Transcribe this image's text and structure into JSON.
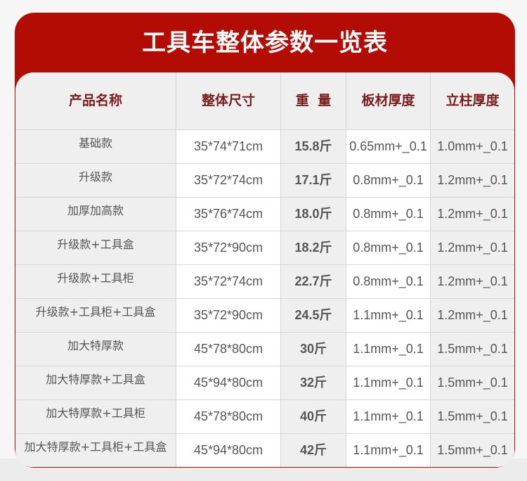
{
  "title": "工具车整体参数一览表",
  "colors": {
    "accent": "#b30c05",
    "header_text": "#7a1c1c"
  },
  "table": {
    "headers": [
      "产品名称",
      "整体尺寸",
      "重 量",
      "板材厚度",
      "立柱厚度"
    ],
    "rows": [
      [
        "基础款",
        "35*74*71cm",
        "15.8斤",
        "0.65mm+_0.1",
        "1.0mm+_0.1"
      ],
      [
        "升级款",
        "35*72*74cm",
        "17.1斤",
        "0.8mm+_0.1",
        "1.2mm+_0.1"
      ],
      [
        "加厚加高款",
        "35*76*74cm",
        "18.0斤",
        "0.8mm+_0.1",
        "1.2mm+_0.1"
      ],
      [
        "升级款+工具盒",
        "35*72*90cm",
        "18.2斤",
        "0.8mm+_0.1",
        "1.2mm+_0.1"
      ],
      [
        "升级款+工具柜",
        "35*72*74cm",
        "22.7斤",
        "0.8mm+_0.1",
        "1.2mm+_0.1"
      ],
      [
        "升级款+工具柜+工具盒",
        "35*72*90cm",
        "24.5斤",
        "1.1mm+_0.1",
        "1.2mm+_0.1"
      ],
      [
        "加大特厚款",
        "45*78*80cm",
        "30斤",
        "1.1mm+_0.1",
        "1.5mm+_0.1"
      ],
      [
        "加大特厚款+工具盒",
        "45*94*80cm",
        "32斤",
        "1.1mm+_0.1",
        "1.5mm+_0.1"
      ],
      [
        "加大特厚款+工具柜",
        "45*78*80cm",
        "40斤",
        "1.1mm+_0.1",
        "1.5mm+_0.1"
      ],
      [
        "加大特厚款+工具柜+工具盒",
        "45*94*80cm",
        "42斤",
        "1.1mm+_0.1",
        "1.5mm+_0.1"
      ]
    ]
  }
}
